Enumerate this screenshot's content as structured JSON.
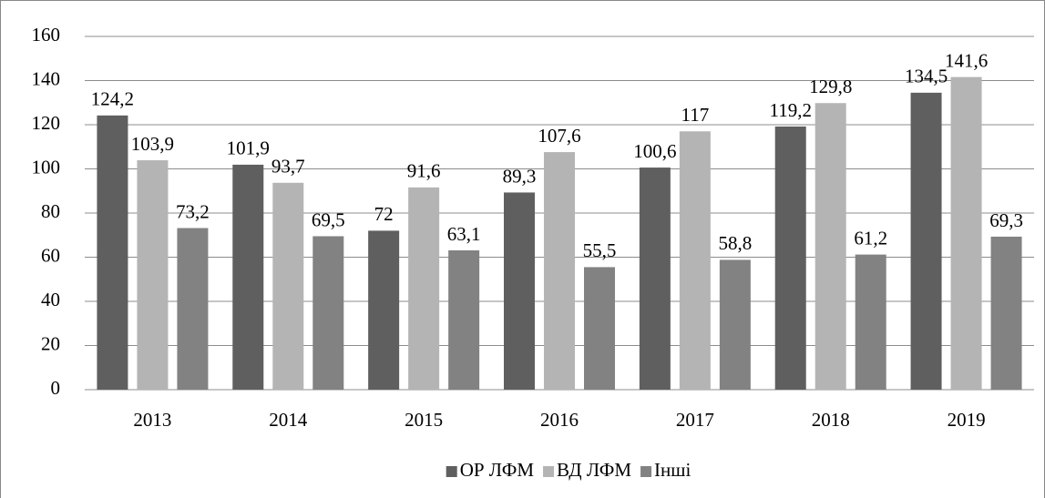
{
  "chart_data": {
    "type": "bar",
    "categories": [
      "2013",
      "2014",
      "2015",
      "2016",
      "2017",
      "2018",
      "2019"
    ],
    "series": [
      {
        "name": "ОР ЛФМ",
        "color": "#5f5f5f",
        "values": [
          124.2,
          101.9,
          72,
          89.3,
          100.6,
          119.2,
          134.5
        ],
        "value_labels": [
          "124,2",
          "101,9",
          "72",
          "89,3",
          "100,6",
          "119,2",
          "134,5"
        ]
      },
      {
        "name": "ВД ЛФМ",
        "color": "#b4b4b4",
        "values": [
          103.9,
          93.7,
          91.6,
          107.6,
          117,
          129.8,
          141.6
        ],
        "value_labels": [
          "103,9",
          "93,7",
          "91,6",
          "107,6",
          "117",
          "129,8",
          "141,6"
        ]
      },
      {
        "name": "Інші",
        "color": "#828282",
        "values": [
          73.2,
          69.5,
          63.1,
          55.5,
          58.8,
          61.2,
          69.3
        ],
        "value_labels": [
          "73,2",
          "69,5",
          "63,1",
          "55,5",
          "58,8",
          "61,2",
          "69,3"
        ]
      }
    ],
    "ylim": [
      0,
      160
    ],
    "yticks": [
      0,
      20,
      40,
      60,
      80,
      100,
      120,
      140,
      160
    ],
    "grid": true,
    "legend": "bottom"
  }
}
